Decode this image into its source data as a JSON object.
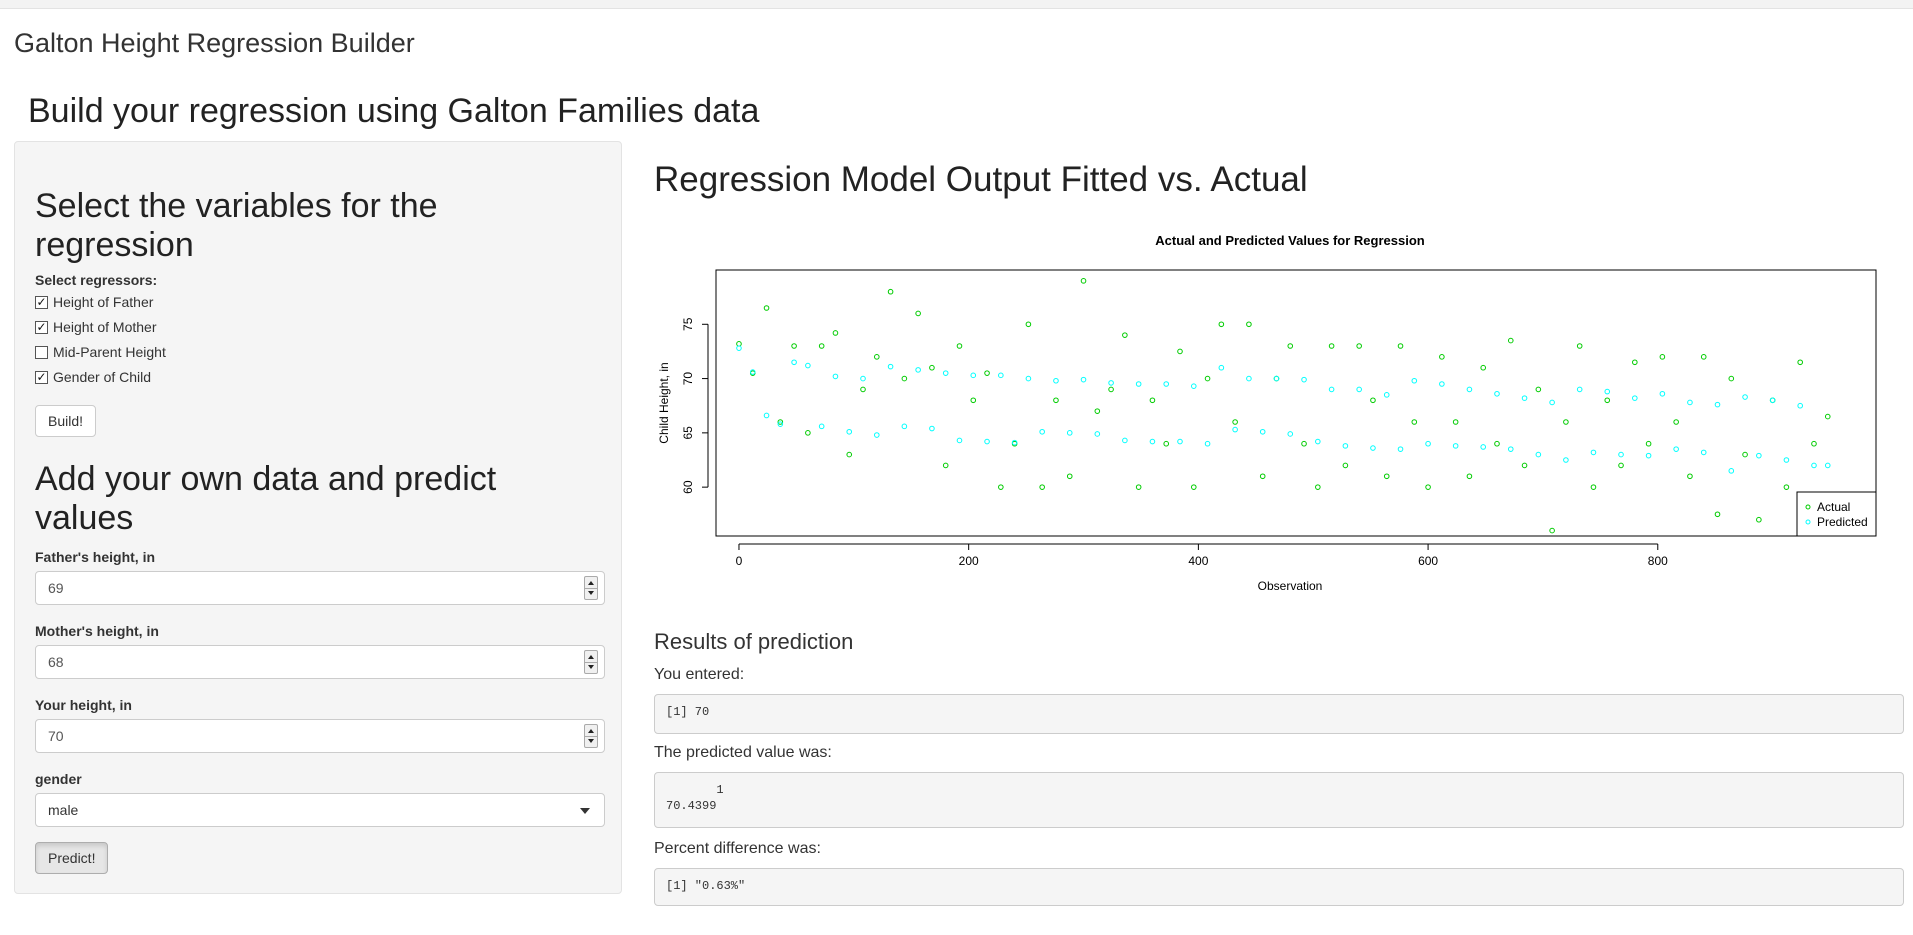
{
  "app": {
    "title": "Galton Height Regression Builder"
  },
  "page": {
    "heading": "Build your regression using Galton Families data"
  },
  "sidebar": {
    "variables_heading": "Select the variables for the regression",
    "regressors_label": "Select regressors:",
    "regressors": [
      {
        "label": "Height of Father",
        "checked": true
      },
      {
        "label": "Height of Mother",
        "checked": true
      },
      {
        "label": "Mid-Parent Height",
        "checked": false
      },
      {
        "label": "Gender of Child",
        "checked": true
      }
    ],
    "build_button": "Build!",
    "predict_heading": "Add your own data and predict values",
    "father_label": "Father's height, in",
    "father_value": "69",
    "mother_label": "Mother's height, in",
    "mother_value": "68",
    "your_label": "Your height, in",
    "your_value": "70",
    "gender_label": "gender",
    "gender_value": "male",
    "predict_button": "Predict!"
  },
  "main": {
    "heading": "Regression Model Output Fitted vs. Actual",
    "results_heading": "Results of prediction",
    "entered_label": "You entered:",
    "entered_output": "[1] 70",
    "predicted_label": "The predicted value was:",
    "predicted_output": "       1 \n70.4399 ",
    "percent_label": "Percent difference was:",
    "percent_output": "[1] \"0.63%\""
  },
  "chart_data": {
    "type": "scatter",
    "title": "Actual and Predicted Values for Regression",
    "xlabel": "Observation",
    "ylabel": "Child Height, in",
    "xlim": [
      -20,
      990
    ],
    "ylim": [
      55.5,
      80
    ],
    "xticks": [
      0,
      200,
      400,
      600,
      800
    ],
    "yticks": [
      60,
      65,
      70,
      75
    ],
    "legend": {
      "position": "bottom-right",
      "entries": [
        "Actual",
        "Predicted"
      ]
    },
    "colors": {
      "actual": "#00cc00",
      "predicted": "#00ffff"
    },
    "series": [
      {
        "name": "Actual",
        "points_by_observation_step_12": [
          [
            0,
            73.2
          ],
          [
            12,
            70.5
          ],
          [
            24,
            76.5
          ],
          [
            36,
            66.0
          ],
          [
            48,
            73.0
          ],
          [
            60,
            65.0
          ],
          [
            72,
            73.0
          ],
          [
            84,
            74.2
          ],
          [
            96,
            63.0
          ],
          [
            108,
            69.0
          ],
          [
            120,
            72.0
          ],
          [
            132,
            78.0
          ],
          [
            144,
            70.0
          ],
          [
            156,
            76.0
          ],
          [
            168,
            71.0
          ],
          [
            180,
            62.0
          ],
          [
            192,
            73.0
          ],
          [
            204,
            68.0
          ],
          [
            216,
            70.5
          ],
          [
            228,
            60.0
          ],
          [
            240,
            64.0
          ],
          [
            252,
            75.0
          ],
          [
            264,
            60.0
          ],
          [
            276,
            68.0
          ],
          [
            288,
            61.0
          ],
          [
            300,
            79.0
          ],
          [
            312,
            67.0
          ],
          [
            324,
            69.0
          ],
          [
            336,
            74.0
          ],
          [
            348,
            60.0
          ],
          [
            360,
            68.0
          ],
          [
            372,
            64.0
          ],
          [
            384,
            72.5
          ],
          [
            396,
            60.0
          ],
          [
            408,
            70.0
          ],
          [
            420,
            75.0
          ],
          [
            432,
            66.0
          ],
          [
            444,
            75.0
          ],
          [
            456,
            61.0
          ],
          [
            468,
            70.0
          ],
          [
            480,
            73.0
          ],
          [
            492,
            64.0
          ],
          [
            504,
            60.0
          ],
          [
            516,
            73.0
          ],
          [
            528,
            62.0
          ],
          [
            540,
            73.0
          ],
          [
            552,
            68.0
          ],
          [
            564,
            61.0
          ],
          [
            576,
            73.0
          ],
          [
            588,
            66.0
          ],
          [
            600,
            60.0
          ],
          [
            612,
            72.0
          ],
          [
            624,
            66.0
          ],
          [
            636,
            61.0
          ],
          [
            648,
            71.0
          ],
          [
            660,
            64.0
          ],
          [
            672,
            73.5
          ],
          [
            684,
            62.0
          ],
          [
            696,
            69.0
          ],
          [
            708,
            56.0
          ],
          [
            720,
            66.0
          ],
          [
            732,
            73.0
          ],
          [
            744,
            60.0
          ],
          [
            756,
            68.0
          ],
          [
            768,
            62.0
          ],
          [
            780,
            71.5
          ],
          [
            792,
            64.0
          ],
          [
            804,
            72.0
          ],
          [
            816,
            66.0
          ],
          [
            828,
            61.0
          ],
          [
            840,
            72.0
          ],
          [
            852,
            57.5
          ],
          [
            864,
            70.0
          ],
          [
            876,
            63.0
          ],
          [
            888,
            57.0
          ],
          [
            900,
            68.0
          ],
          [
            912,
            60.0
          ],
          [
            924,
            71.5
          ],
          [
            936,
            64.0
          ],
          [
            948,
            66.5
          ]
        ]
      },
      {
        "name": "Predicted",
        "points_by_observation_step_12": [
          [
            0,
            72.8
          ],
          [
            12,
            70.6
          ],
          [
            24,
            66.6
          ],
          [
            36,
            65.8
          ],
          [
            48,
            71.5
          ],
          [
            60,
            71.2
          ],
          [
            72,
            65.6
          ],
          [
            84,
            70.2
          ],
          [
            96,
            65.1
          ],
          [
            108,
            70.0
          ],
          [
            120,
            64.8
          ],
          [
            132,
            71.1
          ],
          [
            144,
            65.6
          ],
          [
            156,
            70.8
          ],
          [
            168,
            65.4
          ],
          [
            180,
            70.5
          ],
          [
            192,
            64.3
          ],
          [
            204,
            70.3
          ],
          [
            216,
            64.2
          ],
          [
            228,
            70.3
          ],
          [
            240,
            64.1
          ],
          [
            252,
            70.0
          ],
          [
            264,
            65.1
          ],
          [
            276,
            69.8
          ],
          [
            288,
            65.0
          ],
          [
            300,
            69.9
          ],
          [
            312,
            64.9
          ],
          [
            324,
            69.6
          ],
          [
            336,
            64.3
          ],
          [
            348,
            69.5
          ],
          [
            360,
            64.2
          ],
          [
            372,
            69.5
          ],
          [
            384,
            64.2
          ],
          [
            396,
            69.3
          ],
          [
            408,
            64.0
          ],
          [
            420,
            71.0
          ],
          [
            432,
            65.3
          ],
          [
            444,
            70.0
          ],
          [
            456,
            65.1
          ],
          [
            468,
            70.0
          ],
          [
            480,
            64.9
          ],
          [
            492,
            69.9
          ],
          [
            504,
            64.2
          ],
          [
            516,
            69.0
          ],
          [
            528,
            63.8
          ],
          [
            540,
            69.0
          ],
          [
            552,
            63.6
          ],
          [
            564,
            68.5
          ],
          [
            576,
            63.5
          ],
          [
            588,
            69.8
          ],
          [
            600,
            64.0
          ],
          [
            612,
            69.5
          ],
          [
            624,
            63.8
          ],
          [
            636,
            69.0
          ],
          [
            648,
            63.7
          ],
          [
            660,
            68.6
          ],
          [
            672,
            63.5
          ],
          [
            684,
            68.2
          ],
          [
            696,
            63.0
          ],
          [
            708,
            67.8
          ],
          [
            720,
            62.5
          ],
          [
            732,
            69.0
          ],
          [
            744,
            63.2
          ],
          [
            756,
            68.8
          ],
          [
            768,
            63.0
          ],
          [
            780,
            68.2
          ],
          [
            792,
            62.9
          ],
          [
            804,
            68.6
          ],
          [
            816,
            63.5
          ],
          [
            828,
            67.8
          ],
          [
            840,
            63.2
          ],
          [
            852,
            67.6
          ],
          [
            864,
            61.5
          ],
          [
            876,
            68.3
          ],
          [
            888,
            62.9
          ],
          [
            900,
            68.0
          ],
          [
            912,
            62.5
          ],
          [
            924,
            67.5
          ],
          [
            936,
            62.0
          ],
          [
            948,
            62.0
          ]
        ]
      }
    ]
  }
}
